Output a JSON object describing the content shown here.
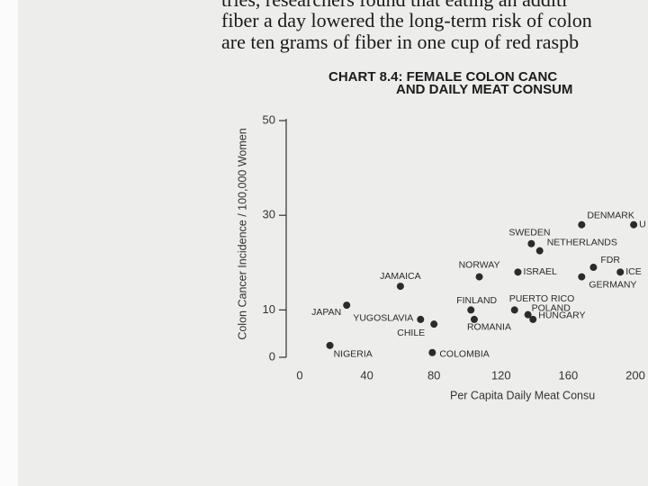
{
  "book_text": [
    "tries, researchers found that eating an additi",
    "fiber a day lowered the long-term risk of colon",
    "are ten grams of fiber in one cup of red raspb"
  ],
  "chart_data": {
    "type": "scatter",
    "title": [
      "CHART 8.4: FEMALE COLON CANC",
      "AND DAILY MEAT CONSUM"
    ],
    "x_label": "Per Capita Daily Meat Consu",
    "y_label": "Colon Cancer Incidence / 100,000 Women",
    "labels": [
      "NIGERIA",
      "JAPAN",
      "YUGOSLAVIA",
      "JAMAICA",
      "CHILE",
      "COLOMBIA",
      "FINLAND",
      "ROMANIA",
      "NORWAY",
      "ISRAEL",
      "SWEDEN",
      "NETHERLANDS",
      "PUERTO RICO",
      "POLAND",
      "HUNGARY",
      "DENMARK",
      "FDR",
      "GERMANY",
      "ICE",
      "U"
    ],
    "x": [
      18,
      28,
      72,
      60,
      80,
      79,
      102,
      104,
      107,
      130,
      138,
      143,
      128,
      136,
      139,
      168,
      175,
      168,
      191,
      199
    ],
    "values": [
      2.5,
      11,
      8,
      15,
      7,
      1,
      10,
      8,
      17,
      18,
      24,
      22.5,
      10,
      9,
      8,
      28,
      19,
      17,
      18,
      28
    ],
    "color": "#2b2b2b",
    "xlim": [
      0,
      200
    ],
    "xticks": [
      0,
      40,
      80,
      120,
      160,
      200
    ],
    "ylim": [
      0,
      50
    ],
    "yticks": [
      0,
      10,
      30,
      50
    ]
  }
}
